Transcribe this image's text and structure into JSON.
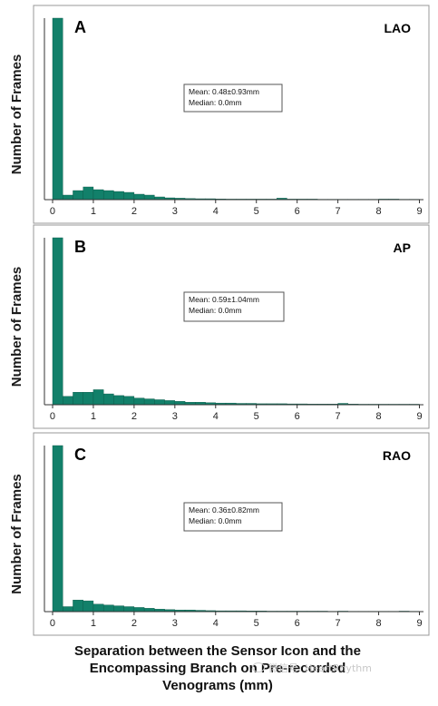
{
  "figure": {
    "xlabel_lines": [
      "Separation between the Sensor Icon and the",
      "Encompassing Branch on Pre-recorded",
      "Venograms (mm)"
    ],
    "ylabel": "Number of Frames",
    "watermark": "微信号: HeartRhythm"
  },
  "colors": {
    "bar_fill": "#12806a",
    "bar_stroke": "#0a5646",
    "axis": "#333333"
  },
  "chart_data": [
    {
      "type": "bar",
      "panel": "A",
      "view": "LAO",
      "stats": [
        "Mean: 0.48±0.93mm",
        "Median: 0.0mm"
      ],
      "x_ticks": [
        "0",
        "1",
        "2",
        "3",
        "4",
        "5",
        "6",
        "7",
        "8",
        "9"
      ],
      "xlim": [
        -0.2,
        9.1
      ],
      "bin_width": 0.25,
      "bin_starts": [
        0,
        0.25,
        0.5,
        0.75,
        1.0,
        1.25,
        1.5,
        1.75,
        2.0,
        2.25,
        2.5,
        2.75,
        3.0,
        3.25,
        3.5,
        3.75,
        4.0,
        4.25,
        4.5,
        4.75,
        5.0,
        5.25,
        5.5,
        5.75,
        6.0,
        6.25,
        6.5,
        6.75,
        7.0,
        7.25,
        7.5,
        7.75,
        8.0,
        8.25,
        8.5,
        8.75
      ],
      "values": [
        100,
        2.5,
        5,
        7,
        5.5,
        5,
        4.5,
        4,
        3,
        2.5,
        1.5,
        1,
        0.8,
        0.6,
        0.5,
        0.5,
        0.4,
        0.3,
        0.3,
        0.3,
        0.3,
        0.3,
        0.8,
        0.3,
        0.3,
        0.3,
        0.2,
        0.2,
        0.2,
        0.2,
        0.2,
        0.2,
        0.3,
        0.3,
        0.2,
        0.2
      ],
      "ylim": [
        0,
        100
      ]
    },
    {
      "type": "bar",
      "panel": "B",
      "view": "AP",
      "stats": [
        "Mean: 0.59±1.04mm",
        "Median: 0.0mm"
      ],
      "x_ticks": [
        "0",
        "1",
        "2",
        "3",
        "4",
        "5",
        "6",
        "7",
        "8",
        "9"
      ],
      "xlim": [
        -0.2,
        9.1
      ],
      "bin_width": 0.25,
      "bin_starts": [
        0,
        0.25,
        0.5,
        0.75,
        1.0,
        1.25,
        1.5,
        1.75,
        2.0,
        2.25,
        2.5,
        2.75,
        3.0,
        3.25,
        3.5,
        3.75,
        4.0,
        4.25,
        4.5,
        4.75,
        5.0,
        5.25,
        5.5,
        5.75,
        6.0,
        6.25,
        6.5,
        6.75,
        7.0,
        7.25,
        7.5,
        7.75,
        8.0,
        8.25,
        8.5,
        8.75
      ],
      "values": [
        100,
        5,
        7.5,
        7.5,
        9,
        6.5,
        5.5,
        5,
        4,
        3.5,
        3,
        2.5,
        2,
        1.5,
        1.5,
        1.2,
        1,
        1,
        0.8,
        0.8,
        0.6,
        0.6,
        0.6,
        0.5,
        0.5,
        0.4,
        0.4,
        0.4,
        0.8,
        0.4,
        0.3,
        0.3,
        0.3,
        0.3,
        0.3,
        0.3
      ],
      "ylim": [
        0,
        100
      ]
    },
    {
      "type": "bar",
      "panel": "C",
      "view": "RAO",
      "stats": [
        "Mean: 0.36±0.82mm",
        "Median: 0.0mm"
      ],
      "x_ticks": [
        "0",
        "1",
        "2",
        "3",
        "4",
        "5",
        "6",
        "7",
        "8",
        "9"
      ],
      "xlim": [
        -0.2,
        9.1
      ],
      "bin_width": 0.25,
      "bin_starts": [
        0,
        0.25,
        0.5,
        0.75,
        1.0,
        1.25,
        1.5,
        1.75,
        2.0,
        2.25,
        2.5,
        2.75,
        3.0,
        3.25,
        3.5,
        3.75,
        4.0,
        4.25,
        4.5,
        4.75,
        5.0,
        5.25,
        5.5,
        5.75,
        6.0,
        6.25,
        6.5,
        6.75,
        7.0,
        7.25,
        7.5,
        7.75,
        8.0,
        8.25,
        8.5,
        8.75
      ],
      "values": [
        100,
        3,
        7,
        6.5,
        4.5,
        4,
        3.5,
        3,
        2.5,
        2,
        1.5,
        1.2,
        1,
        1,
        0.8,
        0.6,
        0.5,
        0.5,
        0.5,
        0.4,
        0.4,
        0.3,
        0.3,
        0.3,
        0.3,
        0.3,
        0.3,
        0.2,
        0.3,
        0.2,
        0.2,
        0.2,
        0.2,
        0.2,
        0.3,
        0.2
      ],
      "ylim": [
        0,
        100
      ]
    }
  ]
}
